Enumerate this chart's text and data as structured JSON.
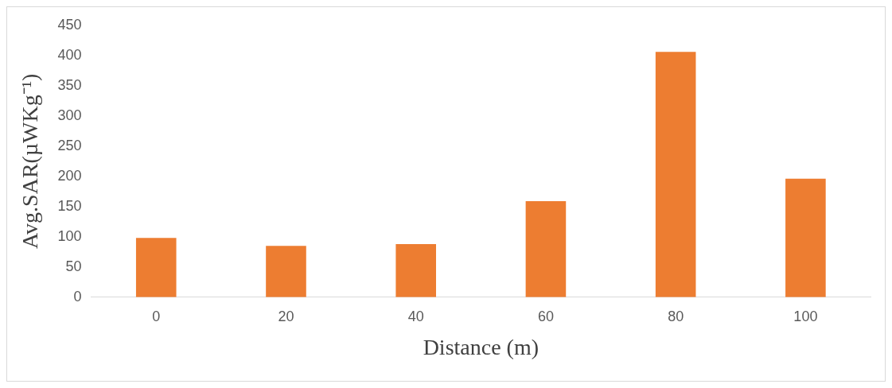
{
  "chart_data": {
    "type": "bar",
    "xlabel": "Distance (m)",
    "ylabel": "Avg.SAR(µWKg⁻¹)",
    "categories": [
      "0",
      "20",
      "40",
      "60",
      "80",
      "100"
    ],
    "values": [
      98,
      85,
      88,
      159,
      406,
      196
    ],
    "color": "#ed7d31",
    "ylim": [
      0,
      450
    ],
    "yticks": [
      0,
      50,
      100,
      150,
      200,
      250,
      300,
      350,
      400,
      450
    ],
    "grid": false,
    "legend": false
  }
}
